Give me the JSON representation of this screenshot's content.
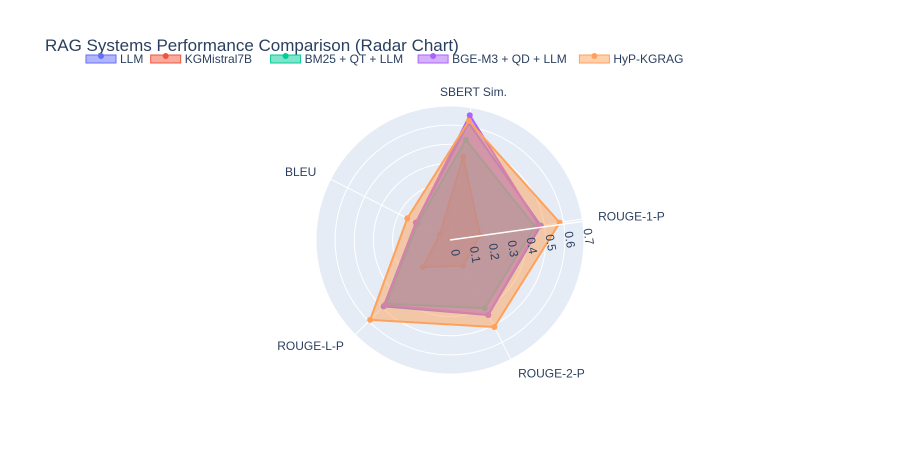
{
  "chart_data": {
    "type": "radar",
    "title": "RAG Systems Performance Comparison (Radar Chart)",
    "axes": [
      "ROUGE-1-P",
      "ROUGE-2-P",
      "ROUGE-L-P",
      "BLEU",
      "SBERT Sim."
    ],
    "radial_range": [
      0,
      0.7
    ],
    "radial_ticks": [
      "0",
      "0.1",
      "0.2",
      "0.3",
      "0.4",
      "0.5",
      "0.6",
      "0.7"
    ],
    "legend_position": "top",
    "series": [
      {
        "name": "LLM",
        "color": "#636efa",
        "values": [
          0.48,
          0.44,
          0.49,
          0.2,
          0.62
        ]
      },
      {
        "name": "KGMistral7B",
        "color": "#ef553b",
        "values": [
          0.16,
          0.15,
          0.2,
          0.06,
          0.44
        ]
      },
      {
        "name": "BM25 + QT + LLM",
        "color": "#00cc96",
        "values": [
          0.45,
          0.4,
          0.47,
          0.19,
          0.53
        ]
      },
      {
        "name": "BGE-M3 + QD + LLM",
        "color": "#ab63fa",
        "values": [
          0.47,
          0.44,
          0.48,
          0.2,
          0.66
        ]
      },
      {
        "name": "HyP-KGRAG",
        "color": "#ffa15a",
        "values": [
          0.58,
          0.51,
          0.59,
          0.25,
          0.63
        ]
      }
    ]
  }
}
